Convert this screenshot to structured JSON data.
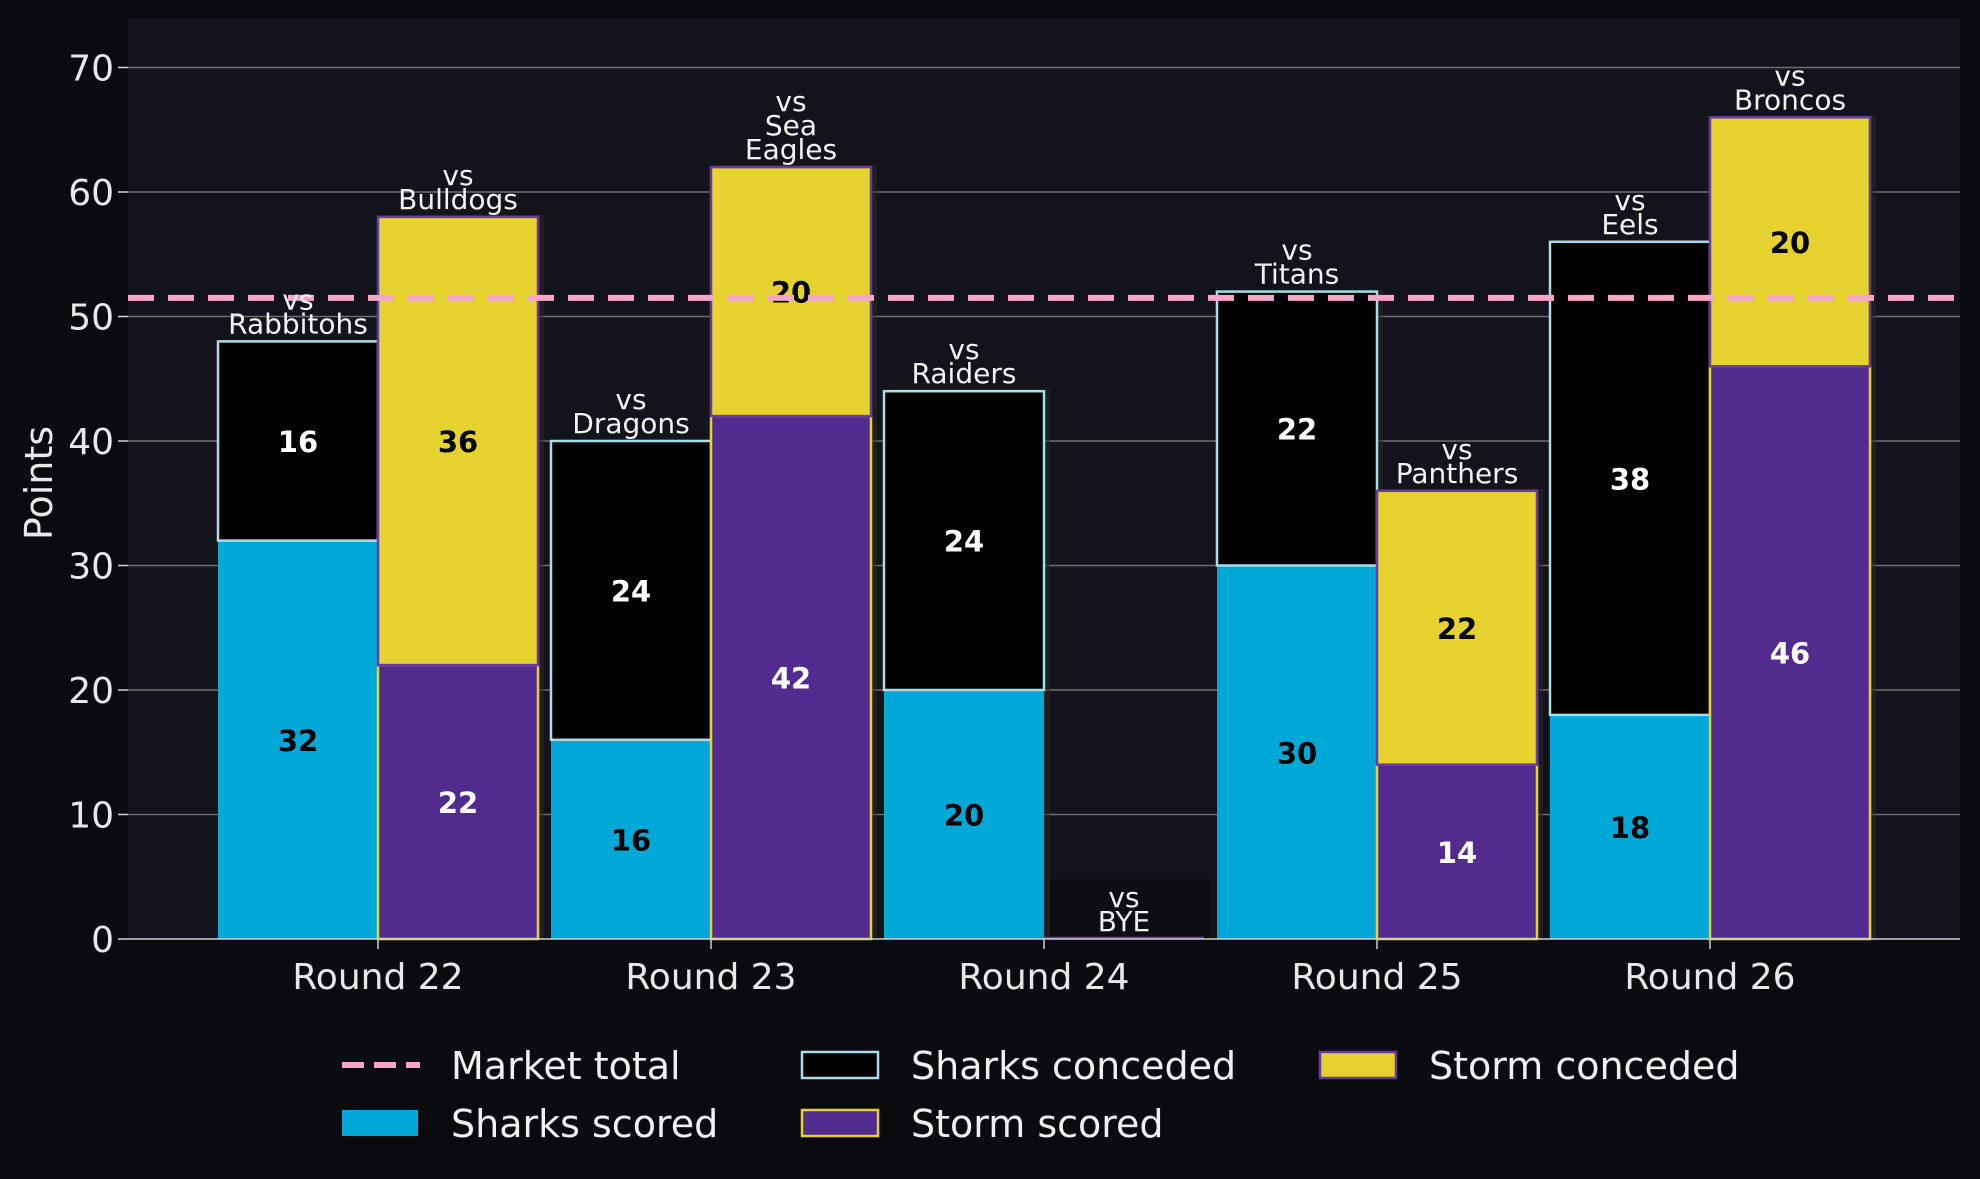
{
  "chart_data": {
    "type": "bar",
    "categories": [
      "Round 22",
      "Round 23",
      "Round 24",
      "Round 25",
      "Round 26"
    ],
    "opponents": {
      "sharks": [
        "vs\nRabbitohs",
        "vs\nDragons",
        "vs\nRaiders",
        "vs\nTitans",
        "vs\nEels"
      ],
      "storm": [
        "vs\nBulldogs",
        "vs\nSea\nEagles",
        "vs\nBYE",
        "vs\nPanthers",
        "vs\nBroncos"
      ]
    },
    "series": [
      {
        "name": "Sharks scored",
        "team": "sharks",
        "stack": "bottom",
        "values": [
          32,
          16,
          20,
          30,
          18
        ],
        "color": "#00a8d8"
      },
      {
        "name": "Sharks conceded",
        "team": "sharks",
        "stack": "top",
        "values": [
          16,
          24,
          24,
          22,
          38
        ],
        "color": "#000000"
      },
      {
        "name": "Storm scored",
        "team": "storm",
        "stack": "bottom",
        "values": [
          22,
          42,
          0,
          14,
          46
        ],
        "color": "#522b8e"
      },
      {
        "name": "Storm conceded",
        "team": "storm",
        "stack": "top",
        "values": [
          36,
          20,
          0,
          22,
          20
        ],
        "color": "#e6d22e"
      }
    ],
    "reference_line": {
      "name": "Market total",
      "value": 51.5,
      "color": "#f4a6c8",
      "style": "dashed"
    },
    "ylabel": "Points",
    "xlabel": "",
    "ylim": [
      0,
      72
    ],
    "yticks": [
      0,
      10,
      20,
      30,
      40,
      50,
      60,
      70
    ],
    "grid": true,
    "legend_position": "bottom-center",
    "colors": {
      "background": "#0b0b0f",
      "plot_background": "#12131b",
      "grid": "#6e6e6e",
      "sharks_edge": "#a9dce6",
      "storm_scored_edge": "#e6d22e",
      "storm_conceded_edge": "#6a3aa0"
    }
  }
}
